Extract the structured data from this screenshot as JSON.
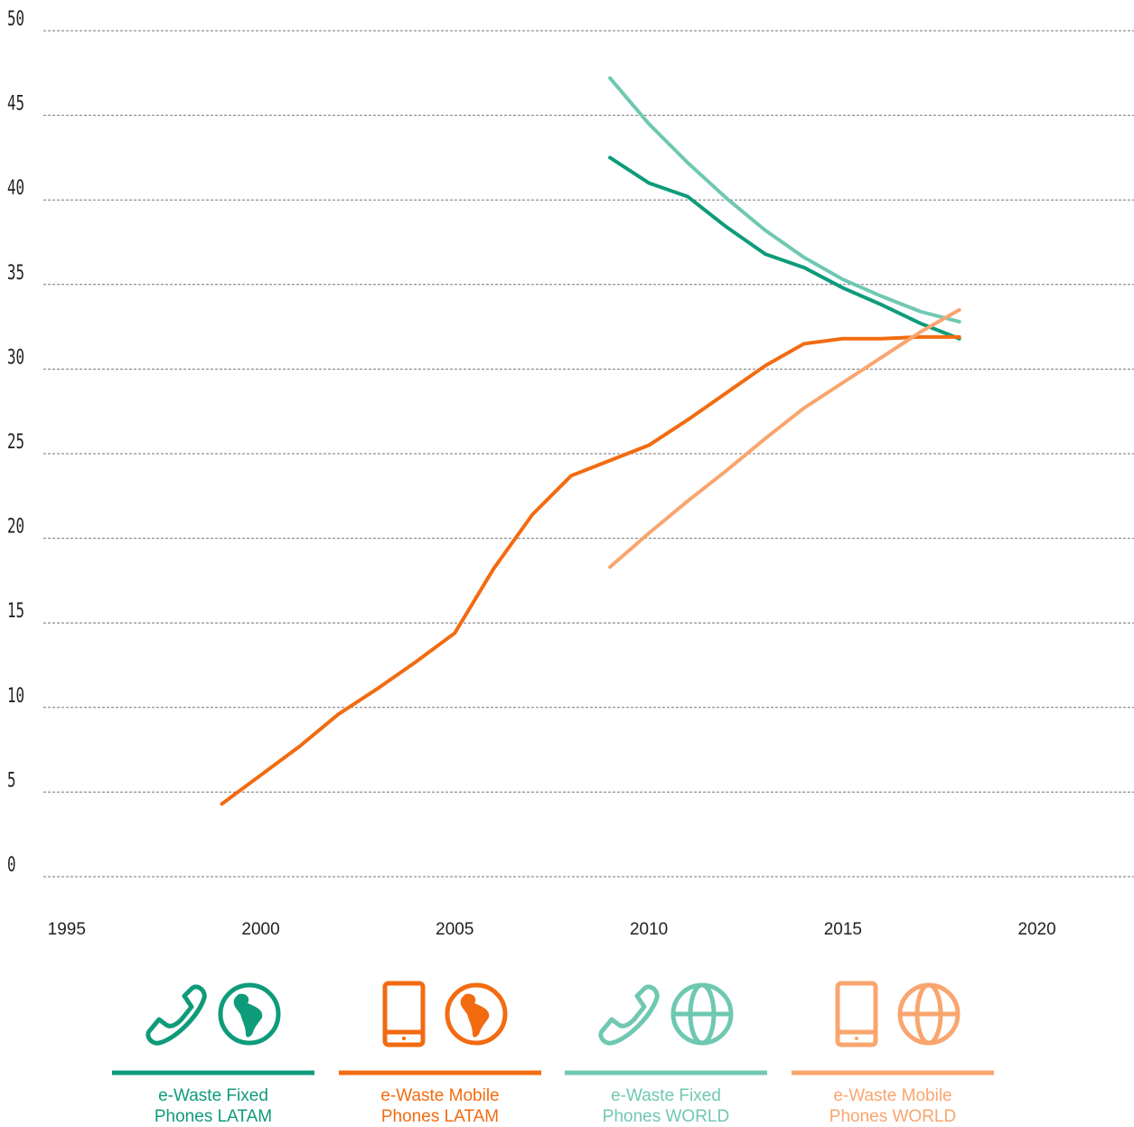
{
  "chart_data": {
    "type": "line",
    "xlim": [
      1994.4,
      2022.5
    ],
    "xticks": [
      1995,
      2000,
      2005,
      2010,
      2015,
      2020
    ],
    "ylim": [
      0,
      50
    ],
    "yticks": [
      0,
      5,
      10,
      15,
      20,
      25,
      30,
      35,
      40,
      45,
      50
    ],
    "grid": true,
    "legend": "bottom",
    "series": [
      {
        "name": "e-Waste Fixed Phones LATAM",
        "color": "#0e9b7a",
        "x": [
          2009,
          2010,
          2011,
          2012,
          2013,
          2014,
          2015,
          2016,
          2017,
          2018
        ],
        "values": [
          42.5,
          41.0,
          40.2,
          38.4,
          36.8,
          36.0,
          34.8,
          33.8,
          32.7,
          31.8
        ]
      },
      {
        "name": "e-Waste Mobile Phones LATAM",
        "color": "#f26b10",
        "x": [
          1999,
          2000,
          2001,
          2002,
          2003,
          2004,
          2005,
          2006,
          2007,
          2008,
          2009,
          2010,
          2011,
          2012,
          2013,
          2014,
          2015,
          2016,
          2017,
          2018
        ],
        "values": [
          4.3,
          6.0,
          7.7,
          9.6,
          11.1,
          12.7,
          14.4,
          18.2,
          21.4,
          23.7,
          24.6,
          25.5,
          27.0,
          28.6,
          30.2,
          31.5,
          31.8,
          31.8,
          31.9,
          31.9
        ]
      },
      {
        "name": "e-Waste Fixed Phones WORLD",
        "color": "#6fc8b1",
        "x": [
          2009,
          2010,
          2011,
          2012,
          2013,
          2014,
          2015,
          2016,
          2017,
          2018
        ],
        "values": [
          47.2,
          44.5,
          42.2,
          40.1,
          38.2,
          36.6,
          35.3,
          34.3,
          33.4,
          32.8
        ]
      },
      {
        "name": "e-Waste Mobile Phones WORLD",
        "color": "#f9a56e",
        "x": [
          2009,
          2010,
          2011,
          2012,
          2013,
          2014,
          2015,
          2016,
          2017,
          2018
        ],
        "values": [
          18.3,
          20.3,
          22.2,
          24.0,
          25.9,
          27.7,
          29.2,
          30.7,
          32.2,
          33.5
        ]
      }
    ]
  }
}
